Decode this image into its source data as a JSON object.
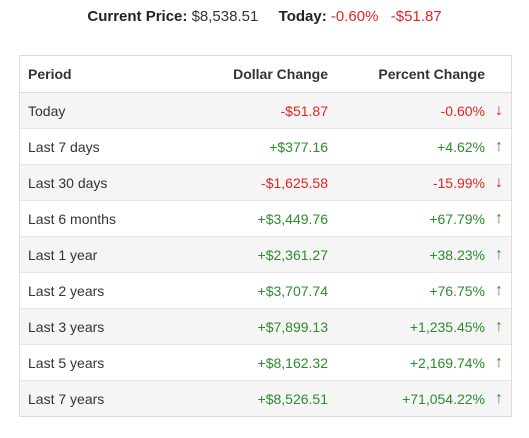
{
  "summary": {
    "current_price_label": "Current Price:",
    "current_price_value": "$8,538.51",
    "today_label": "Today:",
    "today_percent": "-0.60%",
    "today_dollar": "-$51.87"
  },
  "table": {
    "headers": {
      "period": "Period",
      "dollar_change": "Dollar Change",
      "percent_change": "Percent Change"
    },
    "rows": [
      {
        "period": "Today",
        "dollar": "-$51.87",
        "percent": "-0.60%",
        "direction": "down",
        "arrow": "↓"
      },
      {
        "period": "Last 7 days",
        "dollar": "+$377.16",
        "percent": "+4.62%",
        "direction": "up",
        "arrow": "↑"
      },
      {
        "period": "Last 30 days",
        "dollar": "-$1,625.58",
        "percent": "-15.99%",
        "direction": "down",
        "arrow": "↓"
      },
      {
        "period": "Last 6 months",
        "dollar": "+$3,449.76",
        "percent": "+67.79%",
        "direction": "up",
        "arrow": "↑"
      },
      {
        "period": "Last 1 year",
        "dollar": "+$2,361.27",
        "percent": "+38.23%",
        "direction": "up",
        "arrow": "↑"
      },
      {
        "period": "Last 2 years",
        "dollar": "+$3,707.74",
        "percent": "+76.75%",
        "direction": "up",
        "arrow": "↑"
      },
      {
        "period": "Last 3 years",
        "dollar": "+$7,899.13",
        "percent": "+1,235.45%",
        "direction": "up",
        "arrow": "↑"
      },
      {
        "period": "Last 5 years",
        "dollar": "+$8,162.32",
        "percent": "+2,169.74%",
        "direction": "up",
        "arrow": "↑"
      },
      {
        "period": "Last 7 years",
        "dollar": "+$8,526.51",
        "percent": "+71,054.22%",
        "direction": "up",
        "arrow": "↑"
      }
    ]
  },
  "colors": {
    "positive": "#2e8b2e",
    "negative": "#e0261f"
  },
  "icons": {
    "up": "arrow-up-icon",
    "down": "arrow-down-icon"
  }
}
